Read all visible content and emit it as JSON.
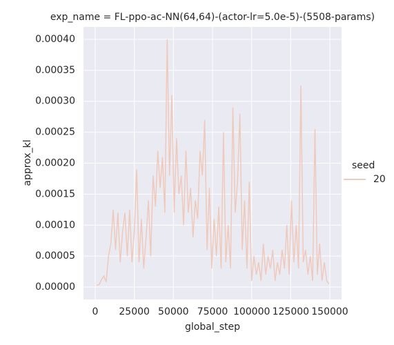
{
  "chart_data": {
    "type": "line",
    "title": "exp_name = FL-ppo-ac-NN(64,64)-(actor-lr=5.0e-5)-(5508-params)",
    "x_label": "global_step",
    "y_label": "approx_kl",
    "legend_title": "seed",
    "legend": "right",
    "grid": true,
    "x": [
      1000,
      2500,
      4000,
      5500,
      7000,
      8500,
      10000,
      11500,
      13000,
      14500,
      16000,
      17500,
      19000,
      20500,
      22000,
      23500,
      25000,
      26500,
      28000,
      29500,
      31000,
      32500,
      34000,
      35500,
      37000,
      38500,
      40000,
      41500,
      43000,
      44500,
      46000,
      47500,
      49000,
      50500,
      52000,
      53500,
      55000,
      56500,
      58000,
      59500,
      61000,
      62500,
      64000,
      65500,
      67000,
      68500,
      70000,
      71500,
      73000,
      74500,
      76000,
      77500,
      79000,
      80500,
      82000,
      83500,
      85000,
      86500,
      88000,
      89500,
      91000,
      92500,
      94000,
      95500,
      97000,
      98500,
      100000,
      101500,
      103000,
      104500,
      106000,
      107500,
      109000,
      110500,
      112000,
      113500,
      115000,
      116500,
      118000,
      119500,
      121000,
      122500,
      124000,
      125500,
      127000,
      128500,
      130000,
      131500,
      133000,
      134500,
      136000,
      137500,
      139000,
      140500,
      142000,
      143500,
      145000,
      146500,
      148000,
      149500
    ],
    "series": [
      {
        "name": "20",
        "color": "#efc9bc",
        "values": [
          3e-06,
          4e-06,
          1.2e-05,
          1.8e-05,
          8e-06,
          5e-05,
          7e-05,
          0.000125,
          6e-05,
          0.00012,
          4e-05,
          9e-05,
          0.00012,
          5e-05,
          0.000125,
          4e-05,
          9e-05,
          0.00019,
          4e-05,
          0.00011,
          3e-05,
          8e-05,
          0.00014,
          5e-05,
          0.00018,
          0.00013,
          0.00022,
          0.00016,
          0.00021,
          0.00012,
          0.0004,
          0.00018,
          0.00031,
          0.00012,
          0.00024,
          0.00015,
          0.00018,
          0.0001,
          0.00022,
          0.00012,
          0.00016,
          8e-05,
          0.00014,
          0.00011,
          0.00022,
          0.00018,
          0.00027,
          6e-05,
          0.00016,
          3e-05,
          0.00011,
          5e-05,
          0.00013,
          3e-05,
          0.00025,
          4e-05,
          0.0001,
          3e-05,
          0.00029,
          0.00012,
          0.00017,
          0.00028,
          6e-05,
          0.00014,
          3e-05,
          0.00017,
          1e-05,
          5e-05,
          2e-05,
          4e-05,
          1e-05,
          7e-05,
          2e-05,
          5e-05,
          3e-05,
          6e-05,
          1e-05,
          4e-05,
          2e-05,
          6e-05,
          3e-05,
          0.0001,
          2e-05,
          0.00014,
          4e-05,
          0.0001,
          3e-05,
          0.000325,
          4e-05,
          6e-05,
          2e-05,
          5e-05,
          1e-05,
          0.000255,
          2e-05,
          7e-05,
          1e-05,
          4e-05,
          1e-05,
          5e-06
        ]
      }
    ],
    "xlim": [
      -7500,
      157500
    ],
    "xticks": [
      0,
      25000,
      50000,
      75000,
      100000,
      125000,
      150000
    ],
    "ylim": [
      -2e-05,
      0.00042
    ],
    "yticks": [
      {
        "value": 0,
        "label": "0.00000"
      },
      {
        "value": 5e-05,
        "label": "0.00005"
      },
      {
        "value": 0.0001,
        "label": "0.00010"
      },
      {
        "value": 0.00015,
        "label": "0.00015"
      },
      {
        "value": 0.0002,
        "label": "0.00020"
      },
      {
        "value": 0.00025,
        "label": "0.00025"
      },
      {
        "value": 0.0003,
        "label": "0.00030"
      },
      {
        "value": 0.00035,
        "label": "0.00035"
      },
      {
        "value": 0.0004,
        "label": "0.00040"
      }
    ]
  }
}
